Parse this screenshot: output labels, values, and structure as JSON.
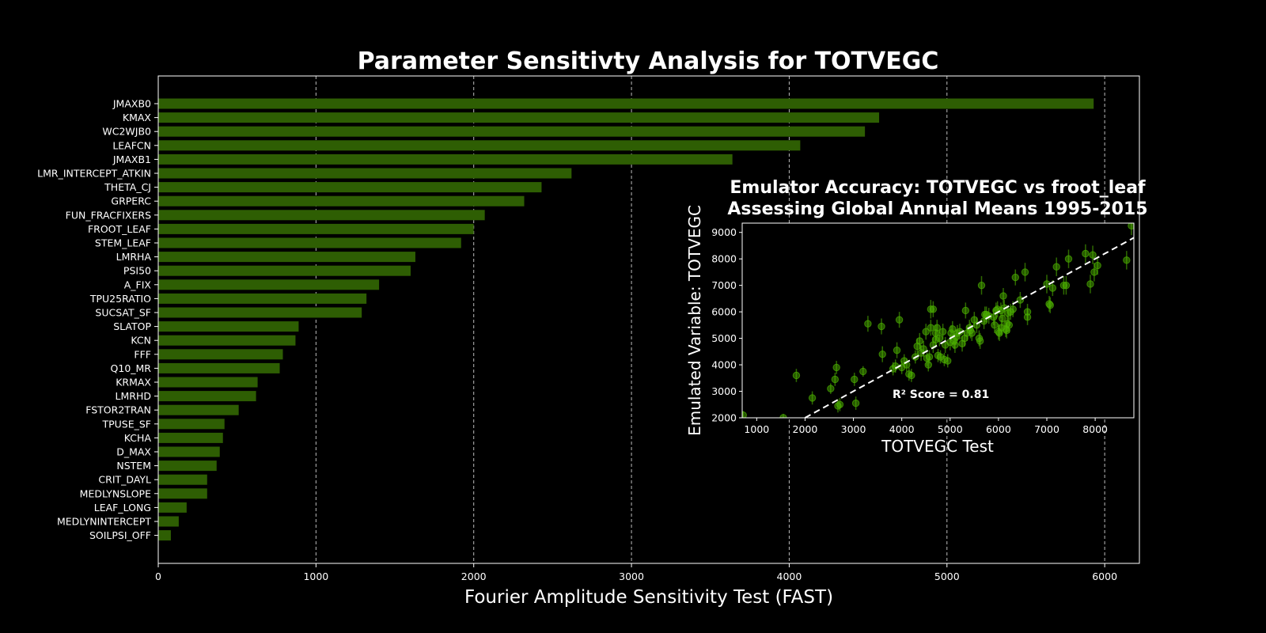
{
  "chart_data": [
    {
      "type": "bar",
      "orientation": "horizontal",
      "title": "Parameter Sensitivty Analysis for TOTVEGC",
      "xlabel": "Fourier Amplitude Sensitivity Test (FAST)",
      "ylabel": "",
      "xlim": [
        0,
        6220
      ],
      "xticks": [
        0,
        1000,
        2000,
        3000,
        4000,
        5000,
        6000
      ],
      "grid": "vertical-dashed",
      "bar_color": "#2e5e03",
      "categories": [
        "JMAXB0",
        "KMAX",
        "WC2WJB0",
        "LEAFCN",
        "JMAXB1",
        "LMR_INTERCEPT_ATKIN",
        "THETA_CJ",
        "GRPERC",
        "FUN_FRACFIXERS",
        "FROOT_LEAF",
        "STEM_LEAF",
        "LMRHA",
        "PSI50",
        "A_FIX",
        "TPU25RATIO",
        "SUCSAT_SF",
        "SLATOP",
        "KCN",
        "FFF",
        "Q10_MR",
        "KRMAX",
        "LMRHD",
        "FSTOR2TRAN",
        "TPUSE_SF",
        "KCHA",
        "D_MAX",
        "NSTEM",
        "CRIT_DAYL",
        "MEDLYNSLOPE",
        "LEAF_LONG",
        "MEDLYNINTERCEPT",
        "SOILPSI_OFF"
      ],
      "values": [
        5930,
        4570,
        4480,
        4070,
        3640,
        2620,
        2430,
        2320,
        2070,
        2000,
        1920,
        1630,
        1600,
        1400,
        1320,
        1290,
        890,
        870,
        790,
        770,
        630,
        620,
        510,
        420,
        410,
        390,
        370,
        310,
        310,
        180,
        130,
        80
      ]
    },
    {
      "type": "scatter",
      "title": "Emulator Accuracy: TOTVEGC vs froot_leaf",
      "subtitle": "Assessing Global Annual Means 1995-2015",
      "xlabel": "TOTVEGC Test",
      "ylabel": "Emulated Variable: TOTVEGC",
      "xlim": [
        700,
        8800
      ],
      "ylim": [
        2000,
        9350
      ],
      "xticks": [
        1000,
        2000,
        3000,
        4000,
        5000,
        6000,
        7000,
        8000
      ],
      "yticks": [
        2000,
        3000,
        4000,
        5000,
        6000,
        7000,
        8000,
        9000
      ],
      "annotation": "R² Score = 0.81",
      "point_color": "#4caf00",
      "reference_line": "y = x (dashed white)",
      "points": [
        [
          720,
          2100,
          150
        ],
        [
          1550,
          2000,
          150
        ],
        [
          1820,
          3600,
          250
        ],
        [
          2150,
          2750,
          250
        ],
        [
          2530,
          3100,
          200
        ],
        [
          2620,
          3450,
          250
        ],
        [
          2650,
          3900,
          250
        ],
        [
          2680,
          2450,
          250
        ],
        [
          2720,
          2500,
          250
        ],
        [
          3020,
          3450,
          250
        ],
        [
          3050,
          2550,
          250
        ],
        [
          3200,
          3750,
          200
        ],
        [
          3300,
          5550,
          300
        ],
        [
          3580,
          5450,
          300
        ],
        [
          3600,
          4400,
          300
        ],
        [
          3820,
          3850,
          250
        ],
        [
          3870,
          3950,
          250
        ],
        [
          3900,
          4550,
          300
        ],
        [
          3950,
          5700,
          300
        ],
        [
          4000,
          3900,
          250
        ],
        [
          4050,
          4150,
          250
        ],
        [
          4100,
          4000,
          250
        ],
        [
          4150,
          3650,
          250
        ],
        [
          4200,
          3600,
          250
        ],
        [
          4280,
          4300,
          250
        ],
        [
          4320,
          4700,
          300
        ],
        [
          4370,
          4900,
          300
        ],
        [
          4400,
          4450,
          300
        ],
        [
          4450,
          4600,
          300
        ],
        [
          4500,
          5250,
          300
        ],
        [
          4520,
          4250,
          300
        ],
        [
          4550,
          4000,
          250
        ],
        [
          4570,
          4300,
          250
        ],
        [
          4600,
          6100,
          350
        ],
        [
          4600,
          5400,
          300
        ],
        [
          4650,
          6100,
          300
        ],
        [
          4650,
          4750,
          300
        ],
        [
          4700,
          5200,
          300
        ],
        [
          4700,
          4950,
          300
        ],
        [
          4730,
          5400,
          300
        ],
        [
          4750,
          4350,
          250
        ],
        [
          4780,
          5000,
          300
        ],
        [
          4800,
          4300,
          250
        ],
        [
          4850,
          5250,
          300
        ],
        [
          4880,
          4200,
          250
        ],
        [
          4900,
          4750,
          300
        ],
        [
          4950,
          4150,
          250
        ],
        [
          5000,
          4850,
          300
        ],
        [
          5020,
          5200,
          300
        ],
        [
          5050,
          5350,
          300
        ],
        [
          5080,
          4900,
          300
        ],
        [
          5100,
          4750,
          300
        ],
        [
          5120,
          5050,
          300
        ],
        [
          5150,
          5200,
          300
        ],
        [
          5200,
          5250,
          300
        ],
        [
          5250,
          4800,
          300
        ],
        [
          5300,
          5000,
          300
        ],
        [
          5320,
          6050,
          300
        ],
        [
          5350,
          5200,
          300
        ],
        [
          5400,
          5400,
          300
        ],
        [
          5420,
          5300,
          300
        ],
        [
          5450,
          5200,
          300
        ],
        [
          5500,
          5700,
          300
        ],
        [
          5550,
          5500,
          300
        ],
        [
          5600,
          5000,
          300
        ],
        [
          5620,
          4900,
          300
        ],
        [
          5650,
          7000,
          350
        ],
        [
          5700,
          5650,
          300
        ],
        [
          5720,
          5900,
          300
        ],
        [
          5750,
          5900,
          300
        ],
        [
          5800,
          5850,
          300
        ],
        [
          5900,
          5800,
          300
        ],
        [
          5920,
          5500,
          300
        ],
        [
          5950,
          6050,
          300
        ],
        [
          5980,
          6100,
          300
        ],
        [
          6000,
          5250,
          300
        ],
        [
          6020,
          5200,
          300
        ],
        [
          6050,
          6050,
          300
        ],
        [
          6060,
          5400,
          300
        ],
        [
          6080,
          5750,
          300
        ],
        [
          6100,
          6600,
          300
        ],
        [
          6120,
          6150,
          300
        ],
        [
          6150,
          5350,
          300
        ],
        [
          6170,
          5300,
          300
        ],
        [
          6180,
          5550,
          300
        ],
        [
          6200,
          5950,
          300
        ],
        [
          6220,
          5500,
          300
        ],
        [
          6250,
          6000,
          300
        ],
        [
          6300,
          6100,
          300
        ],
        [
          6350,
          7300,
          300
        ],
        [
          6450,
          6450,
          300
        ],
        [
          6550,
          7500,
          350
        ],
        [
          6600,
          6000,
          300
        ],
        [
          6600,
          5800,
          300
        ],
        [
          7000,
          7050,
          350
        ],
        [
          7050,
          6300,
          300
        ],
        [
          7070,
          6250,
          300
        ],
        [
          7120,
          6900,
          300
        ],
        [
          7200,
          7700,
          350
        ],
        [
          7350,
          7000,
          350
        ],
        [
          7400,
          7000,
          350
        ],
        [
          7450,
          8000,
          350
        ],
        [
          7800,
          8200,
          350
        ],
        [
          7900,
          7050,
          350
        ],
        [
          7950,
          8150,
          350
        ],
        [
          7980,
          7500,
          350
        ],
        [
          8050,
          7750,
          350
        ],
        [
          8650,
          7950,
          350
        ],
        [
          8750,
          9250,
          350
        ]
      ]
    }
  ]
}
